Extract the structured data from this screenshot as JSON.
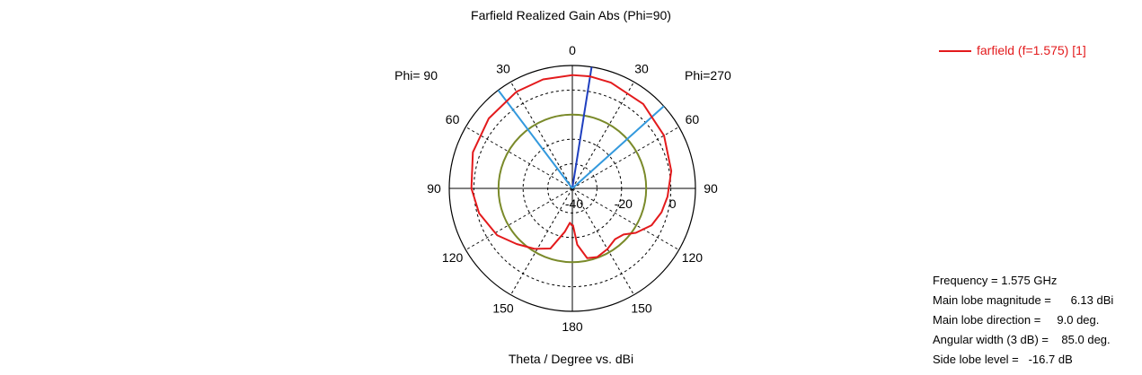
{
  "chart_data": {
    "type": "polar",
    "title": "Farfield Realized Gain Abs (Phi=90)",
    "xlabel": "Theta / Degree vs. dBi",
    "left_side_label": "Phi= 90",
    "right_side_label": "Phi=270",
    "radial_range_dBi": [
      -40,
      10
    ],
    "radial_ring_values_dBi": [
      -30,
      -20,
      -10,
      0
    ],
    "radial_tick_labels": [
      "-40",
      "-20",
      "0"
    ],
    "angle_tick_labels_deg": [
      0,
      30,
      60,
      90,
      120,
      150,
      180
    ],
    "grid": true,
    "legend_position": "top-right",
    "series": [
      {
        "name": "farfield (f=1.575) [1]",
        "color": "#e31a1c",
        "points": [
          {
            "theta": 0,
            "gain_dBi": 6.1
          },
          {
            "theta": 9,
            "gain_dBi": 6.13
          },
          {
            "theta": 20,
            "gain_dBi": 5.8
          },
          {
            "theta": 40,
            "gain_dBi": 4.8
          },
          {
            "theta": 60,
            "gain_dBi": 3.0
          },
          {
            "theta": 80,
            "gain_dBi": 0.8
          },
          {
            "theta": 95,
            "gain_dBi": -1.2
          },
          {
            "theta": 105,
            "gain_dBi": -2.5
          },
          {
            "theta": 115,
            "gain_dBi": -4.5
          },
          {
            "theta": 125,
            "gain_dBi": -8.5
          },
          {
            "theta": 132,
            "gain_dBi": -12.0
          },
          {
            "theta": 140,
            "gain_dBi": -13.0
          },
          {
            "theta": 150,
            "gain_dBi": -11.5
          },
          {
            "theta": 160,
            "gain_dBi": -10.3
          },
          {
            "theta": 168,
            "gain_dBi": -11.0
          },
          {
            "theta": 175,
            "gain_dBi": -17.0
          },
          {
            "theta": 179,
            "gain_dBi": -25.0
          },
          {
            "theta": 181,
            "gain_dBi": -25.0
          },
          {
            "theta": 184,
            "gain_dBi": -26.0
          },
          {
            "theta": 190,
            "gain_dBi": -22.0
          },
          {
            "theta": 200,
            "gain_dBi": -14.0
          },
          {
            "theta": 212,
            "gain_dBi": -11.0
          },
          {
            "theta": 225,
            "gain_dBi": -8.0
          },
          {
            "theta": 238,
            "gain_dBi": -4.0
          },
          {
            "theta": 255,
            "gain_dBi": -0.8
          },
          {
            "theta": 270,
            "gain_dBi": 1.0
          },
          {
            "theta": 290,
            "gain_dBi": 3.0
          },
          {
            "theta": 310,
            "gain_dBi": 4.3
          },
          {
            "theta": 330,
            "gain_dBi": 5.4
          },
          {
            "theta": 345,
            "gain_dBi": 5.9
          },
          {
            "theta": 360,
            "gain_dBi": 6.1
          }
        ]
      }
    ],
    "reference_circle_dBi": -10,
    "markers": [
      {
        "role": "main-lobe-direction",
        "theta": 9,
        "color": "#1f3fbf"
      },
      {
        "role": "beamwidth-edge",
        "theta": 48,
        "color": "#3399dd"
      },
      {
        "role": "beamwidth-edge",
        "theta": 323,
        "color": "#3399dd"
      }
    ]
  },
  "info": {
    "frequency": "Frequency = 1.575 GHz",
    "main_lobe_magnitude": "Main lobe magnitude =      6.13 dBi",
    "main_lobe_direction": "Main lobe direction =     9.0 deg.",
    "angular_width": "Angular width (3 dB) =    85.0 deg.",
    "side_lobe_level": "Side lobe level =   -16.7 dB"
  }
}
